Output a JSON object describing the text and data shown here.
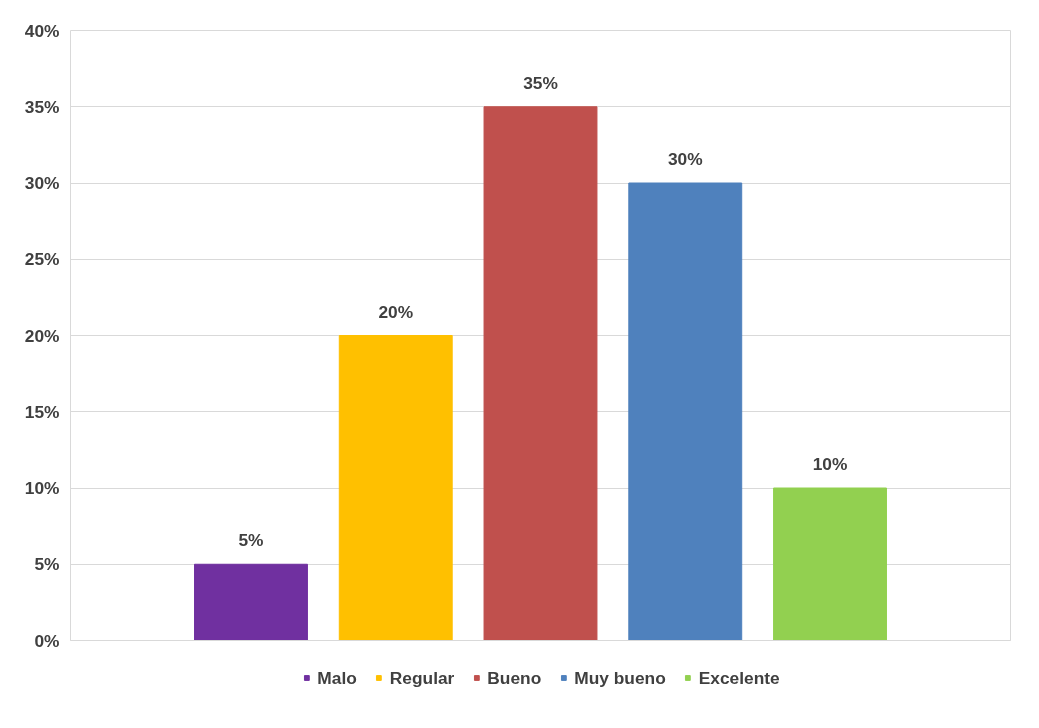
{
  "chart_data": {
    "type": "bar",
    "categories": [
      null
    ],
    "series": [
      {
        "name": "Malo",
        "color": "#7030a0",
        "values": [
          5
        ]
      },
      {
        "name": "Regular",
        "color": "#ffc000",
        "values": [
          20
        ]
      },
      {
        "name": "Bueno",
        "color": "#c0504d",
        "values": [
          35
        ]
      },
      {
        "name": "Muy bueno",
        "color": "#4f81bd",
        "values": [
          30
        ]
      },
      {
        "name": "Excelente",
        "color": "#92d050",
        "values": [
          10
        ]
      }
    ],
    "ylim": [
      0,
      40
    ],
    "yticks": [
      {
        "value": 0,
        "label": "0%"
      },
      {
        "value": 5,
        "label": "5%"
      },
      {
        "value": 10,
        "label": "10%"
      },
      {
        "value": 15,
        "label": "15%"
      },
      {
        "value": 20,
        "label": "20%"
      },
      {
        "value": 25,
        "label": "25%"
      },
      {
        "value": 30,
        "label": "30%"
      },
      {
        "value": 35,
        "label": "35%"
      },
      {
        "value": 40,
        "label": "40%"
      }
    ],
    "value_labels": [
      "5%",
      "20%",
      "35%",
      "30%",
      "10%"
    ],
    "grid": "y",
    "legend": "bottom"
  }
}
